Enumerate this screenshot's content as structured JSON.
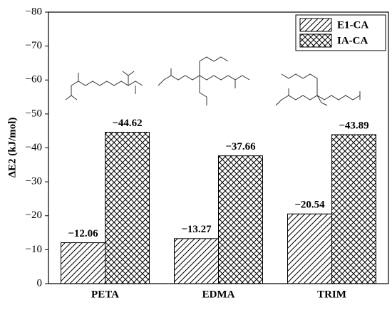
{
  "chart_data": {
    "type": "bar",
    "ylabel": "ΔE2 (kJ/mol)",
    "categories": [
      "PETA",
      "EDMA",
      "TRIM"
    ],
    "series": [
      {
        "name": "E1-CA",
        "color": "#000000",
        "hatch": "/",
        "values": [
          -12.06,
          -13.27,
          -20.54
        ],
        "value_labels": [
          "−12.06",
          "−13.27",
          "−20.54"
        ]
      },
      {
        "name": "IA-CA",
        "color": "#000000",
        "hatch": "x",
        "values": [
          -44.62,
          -37.66,
          -43.89
        ],
        "value_labels": [
          "−44.62",
          "−37.66",
          "−43.89"
        ]
      }
    ],
    "ylim": [
      0,
      -80
    ],
    "yticks": [
      0,
      {
        "value": -10,
        "label": "−10"
      },
      {
        "value": -20,
        "label": "−20"
      },
      {
        "value": -30,
        "label": "−30"
      },
      {
        "value": -40,
        "label": "−40"
      },
      {
        "value": -50,
        "label": "−50"
      },
      {
        "value": -60,
        "label": "−60"
      },
      {
        "value": -70,
        "label": "−70"
      },
      {
        "value": -80,
        "label": "−80"
      }
    ],
    "legend": "upper right",
    "grid": false
  }
}
